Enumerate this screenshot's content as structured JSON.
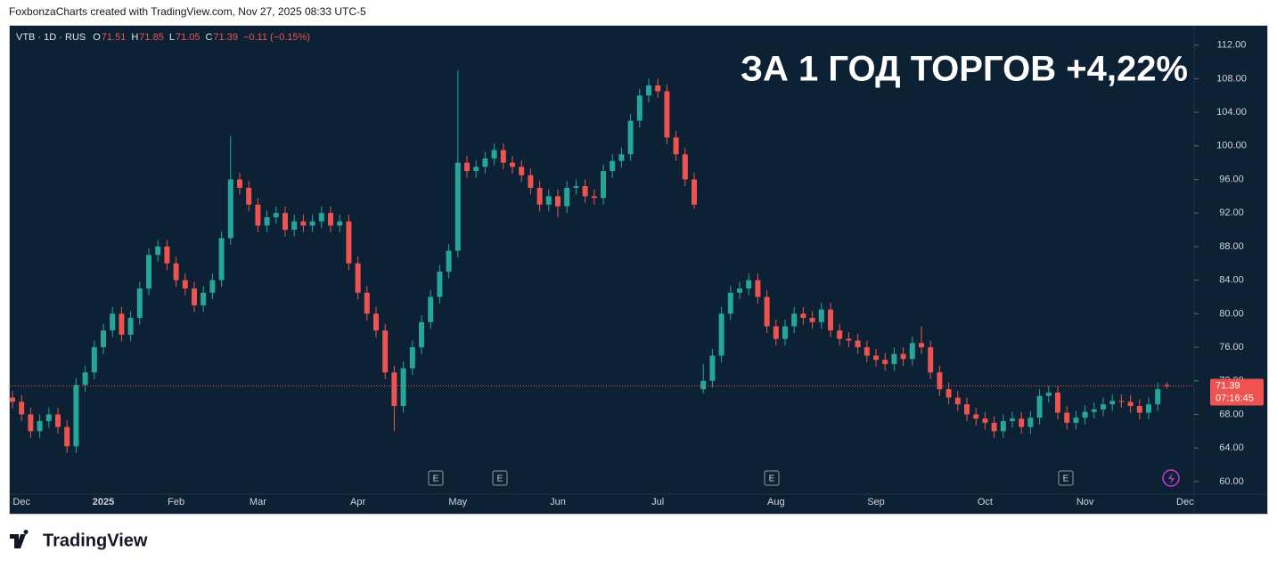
{
  "header": "FoxbonzaCharts created with TradingView.com, Nov 27, 2025 08:33 UTC-5",
  "footer": "TradingView",
  "chart_data": {
    "type": "candlestick",
    "symbol": "VTB · 1D · RUS",
    "ohlc_letters": [
      "O",
      "H",
      "L",
      "C"
    ],
    "change_label": "−0.11 (−0.15%)",
    "annotation": "ЗА 1 ГОД ТОРГОВ +4,22%",
    "countdown": "07:16:45",
    "markers": [
      "E",
      "E",
      "E",
      "E"
    ],
    "up_color": "#26a69a",
    "down_color": "#ef5350",
    "categories": [
      null,
      "Dec",
      null,
      null,
      null,
      null,
      null,
      null,
      null,
      null,
      "2025",
      null,
      null,
      null,
      null,
      null,
      null,
      null,
      "Feb",
      null,
      null,
      null,
      null,
      null,
      null,
      null,
      null,
      "Mar",
      null,
      null,
      null,
      null,
      null,
      null,
      null,
      null,
      null,
      null,
      "Apr",
      null,
      null,
      null,
      null,
      null,
      null,
      null,
      null,
      null,
      null,
      "May",
      null,
      null,
      null,
      null,
      null,
      null,
      null,
      null,
      null,
      null,
      "Jun",
      null,
      null,
      null,
      null,
      null,
      null,
      null,
      null,
      null,
      null,
      "Jul",
      null,
      null,
      null,
      null,
      null,
      null,
      null,
      null,
      null,
      null,
      null,
      null,
      "Aug",
      null,
      null,
      null,
      null,
      null,
      null,
      null,
      null,
      null,
      null,
      "Sep",
      null,
      null,
      null,
      null,
      null,
      null,
      null,
      null,
      null,
      null,
      null,
      "Oct",
      null,
      null,
      null,
      null,
      null,
      null,
      null,
      null,
      null,
      null,
      "Nov",
      null,
      null,
      null,
      null,
      null,
      null,
      null,
      null,
      null,
      null,
      "Dec"
    ],
    "open": [
      70.0,
      69.5,
      68.0,
      66.0,
      67.2,
      68.0,
      66.5,
      64.2,
      71.5,
      73.0,
      76.0,
      78.0,
      80.0,
      77.5,
      79.5,
      83.0,
      87.0,
      88.0,
      86.0,
      84.0,
      83.0,
      81.0,
      82.5,
      84.0,
      89.0,
      96.0,
      95.0,
      93.0,
      90.5,
      91.5,
      92.0,
      90.0,
      91.0,
      90.5,
      91.0,
      92.0,
      90.5,
      91.0,
      86.0,
      82.5,
      80.0,
      78.0,
      73.0,
      69.0,
      73.5,
      76.0,
      79.0,
      82.0,
      85.0,
      87.5,
      98.0,
      97.0,
      97.5,
      98.5,
      99.5,
      98.0,
      97.5,
      96.5,
      95.0,
      93.0,
      94.0,
      92.8,
      95.0,
      95.2,
      94.0,
      93.8,
      97.0,
      98.2,
      99.0,
      103.0,
      106.0,
      107.2,
      106.5,
      101.0,
      99.0,
      96.0,
      71.0,
      72.0,
      75.0,
      80.0,
      82.5,
      83.0,
      84.0,
      82.0,
      78.5,
      77.0,
      78.5,
      80.0,
      79.5,
      79.0,
      80.5,
      78.0,
      77.0,
      76.8,
      76.0,
      75.0,
      74.5,
      74.0,
      75.2,
      74.6,
      76.5,
      76.0,
      73.0,
      71.0,
      70.0,
      69.2,
      68.0,
      67.5,
      67.0,
      66.0,
      67.2,
      67.5,
      66.5,
      67.6,
      70.2,
      70.6,
      68.2,
      67.0,
      67.6,
      68.3,
      68.6,
      69.2,
      69.6,
      69.5,
      69.0,
      68.2,
      69.2,
      71.51,
      null,
      null
    ],
    "high": [
      70.8,
      70.3,
      68.8,
      68.0,
      68.8,
      68.8,
      67.3,
      72.3,
      73.8,
      76.8,
      78.8,
      80.8,
      80.8,
      80.3,
      83.8,
      87.8,
      88.8,
      88.8,
      86.8,
      84.8,
      83.8,
      83.3,
      84.8,
      89.8,
      101.2,
      96.8,
      95.8,
      93.8,
      92.3,
      92.8,
      92.8,
      91.8,
      91.8,
      91.8,
      92.8,
      92.8,
      91.8,
      91.8,
      86.8,
      83.3,
      80.8,
      78.8,
      73.8,
      74.3,
      76.8,
      79.8,
      82.8,
      85.8,
      88.3,
      109.0,
      98.8,
      98.3,
      99.3,
      100.3,
      100.3,
      98.8,
      98.3,
      97.3,
      95.8,
      94.8,
      94.8,
      95.8,
      96.0,
      96.0,
      94.8,
      97.8,
      99.0,
      99.8,
      103.8,
      106.8,
      108.0,
      108.0,
      107.3,
      101.8,
      99.8,
      96.8,
      74.0,
      75.8,
      80.8,
      83.3,
      83.8,
      84.8,
      84.8,
      82.8,
      79.3,
      79.3,
      80.8,
      80.8,
      80.3,
      81.3,
      81.3,
      78.8,
      77.8,
      77.6,
      76.8,
      75.8,
      75.3,
      76.0,
      76.0,
      77.3,
      78.5,
      76.8,
      73.8,
      71.8,
      70.8,
      70.0,
      68.8,
      68.3,
      67.8,
      68.0,
      68.3,
      68.3,
      68.4,
      71.0,
      71.4,
      71.4,
      69.0,
      68.4,
      69.1,
      69.4,
      70.0,
      70.4,
      70.4,
      70.3,
      69.8,
      70.0,
      71.8,
      71.85,
      null,
      null
    ],
    "low": [
      68.7,
      67.2,
      65.2,
      65.2,
      66.4,
      65.7,
      63.4,
      63.4,
      70.7,
      72.2,
      75.2,
      77.2,
      76.7,
      76.7,
      78.7,
      82.2,
      86.2,
      85.2,
      83.2,
      82.2,
      80.2,
      80.2,
      81.7,
      83.2,
      88.2,
      94.2,
      92.2,
      89.7,
      89.7,
      90.7,
      89.2,
      89.2,
      89.7,
      89.7,
      90.2,
      89.7,
      89.7,
      85.2,
      81.7,
      79.2,
      77.2,
      72.2,
      66.0,
      68.2,
      72.7,
      75.2,
      78.2,
      81.2,
      84.2,
      86.7,
      96.2,
      96.2,
      96.7,
      97.7,
      97.2,
      96.7,
      95.7,
      94.2,
      92.2,
      92.2,
      91.5,
      92.0,
      94.2,
      93.2,
      93.0,
      93.0,
      96.2,
      97.4,
      98.2,
      102.2,
      105.2,
      105.7,
      100.2,
      98.2,
      95.2,
      92.5,
      70.5,
      71.2,
      74.2,
      79.2,
      81.7,
      82.2,
      81.2,
      77.7,
      76.2,
      76.2,
      77.7,
      78.7,
      78.2,
      78.2,
      77.2,
      76.2,
      76.0,
      75.2,
      74.2,
      73.7,
      73.2,
      73.2,
      73.8,
      73.8,
      75.2,
      72.2,
      70.2,
      69.2,
      68.4,
      67.2,
      66.7,
      66.2,
      65.2,
      65.2,
      66.4,
      65.7,
      65.7,
      66.8,
      69.4,
      67.4,
      66.2,
      66.2,
      66.8,
      67.5,
      67.8,
      68.4,
      68.8,
      68.2,
      67.4,
      67.4,
      68.4,
      71.05,
      null,
      null
    ],
    "close": [
      69.5,
      68.0,
      66.0,
      67.2,
      68.0,
      66.5,
      64.2,
      71.5,
      73.0,
      76.0,
      78.0,
      80.0,
      77.5,
      79.5,
      83.0,
      87.0,
      88.0,
      86.0,
      84.0,
      83.0,
      81.0,
      82.5,
      84.0,
      89.0,
      96.0,
      95.0,
      93.0,
      90.5,
      91.5,
      92.0,
      90.0,
      91.0,
      90.5,
      91.0,
      92.0,
      90.5,
      91.0,
      86.0,
      82.5,
      80.0,
      78.0,
      73.0,
      69.0,
      73.5,
      76.0,
      79.0,
      82.0,
      85.0,
      87.5,
      98.0,
      97.0,
      97.5,
      98.5,
      99.5,
      98.0,
      97.5,
      96.5,
      95.0,
      93.0,
      94.0,
      92.8,
      95.0,
      95.2,
      94.0,
      93.8,
      97.0,
      98.2,
      99.0,
      103.0,
      106.0,
      107.2,
      106.5,
      101.0,
      99.0,
      96.0,
      93.0,
      72.0,
      75.0,
      80.0,
      82.5,
      83.0,
      84.0,
      82.0,
      78.5,
      77.0,
      78.5,
      80.0,
      79.5,
      79.0,
      80.5,
      78.0,
      77.0,
      76.8,
      76.0,
      75.0,
      74.5,
      74.0,
      75.2,
      74.6,
      76.5,
      76.0,
      73.0,
      71.0,
      70.0,
      69.2,
      68.0,
      67.5,
      67.0,
      66.0,
      67.2,
      67.5,
      66.5,
      67.6,
      70.2,
      70.6,
      68.2,
      67.0,
      67.6,
      68.3,
      68.6,
      69.2,
      69.6,
      69.5,
      69.0,
      68.2,
      69.2,
      71.0,
      71.39,
      null,
      null
    ],
    "ylim": [
      58.5,
      114.2
    ],
    "yticks": [
      {
        "value": 60,
        "label": "60.00"
      },
      {
        "value": 64,
        "label": "64.00"
      },
      {
        "value": 68,
        "label": "68.00"
      },
      {
        "value": 72,
        "label": "72.00"
      },
      {
        "value": 76,
        "label": "76.00"
      },
      {
        "value": 80,
        "label": "80.00"
      },
      {
        "value": 84,
        "label": "84.00"
      },
      {
        "value": 88,
        "label": "88.00"
      },
      {
        "value": 92,
        "label": "92.00"
      },
      {
        "value": 96,
        "label": "96.00"
      },
      {
        "value": 100,
        "label": "100.00"
      },
      {
        "value": 104,
        "label": "104.00"
      },
      {
        "value": 108,
        "label": "108.00"
      },
      {
        "value": 112,
        "label": "112.00"
      }
    ],
    "grid": false
  }
}
